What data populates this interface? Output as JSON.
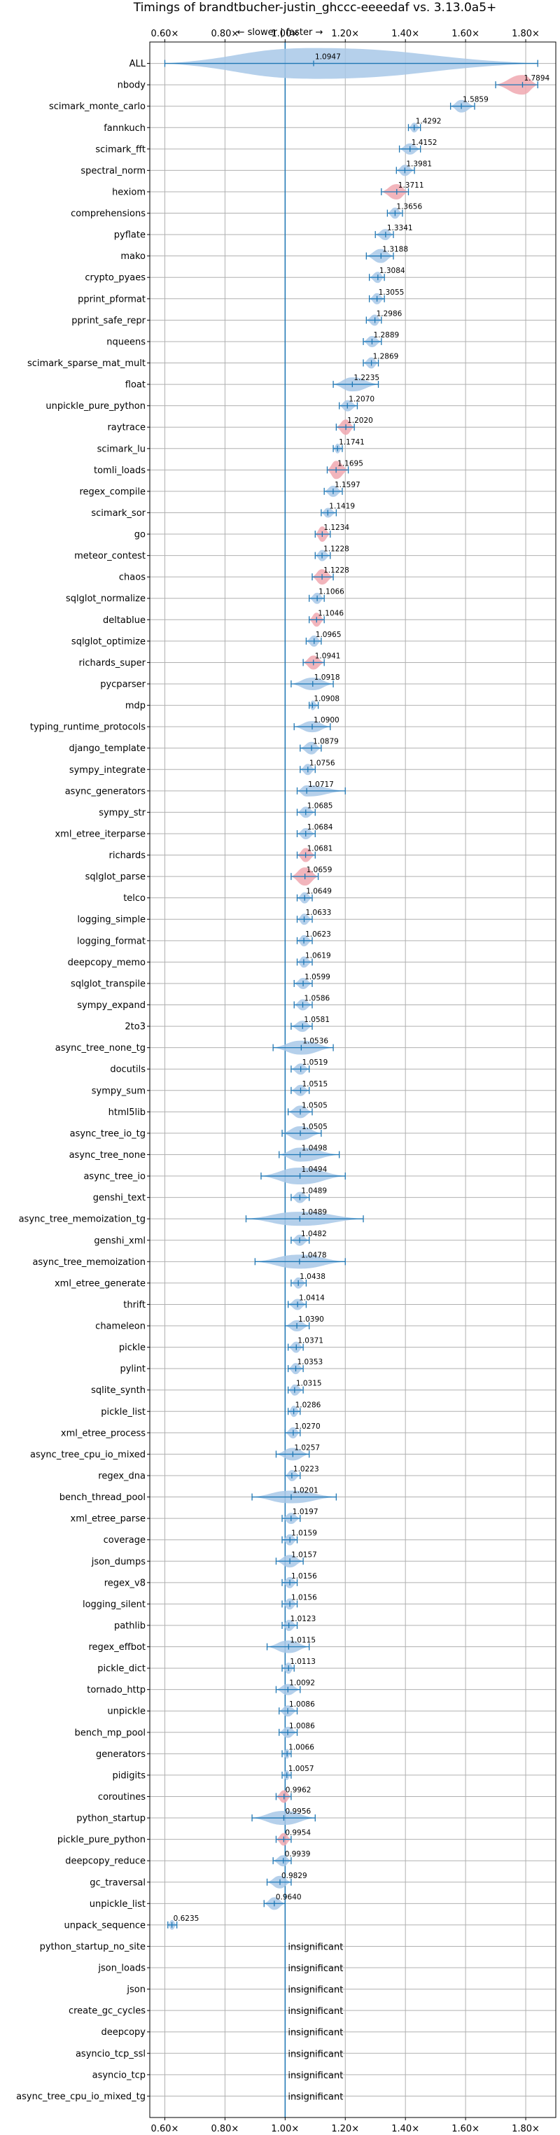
{
  "chart_data": {
    "type": "violin",
    "title": "Timings of brandtbucher-justin_ghccc-eeeedaf vs. 3.13.0a5+",
    "direction_label": "← slower | faster →",
    "x_ticks": [
      "0.60×",
      "0.80×",
      "1.00×",
      "1.20×",
      "1.40×",
      "1.60×",
      "1.80×"
    ],
    "x_tick_values": [
      0.6,
      0.8,
      1.0,
      1.2,
      1.4,
      1.6,
      1.8
    ],
    "xlim": [
      0.55,
      1.9
    ],
    "reference_line": 1.0,
    "grid": true,
    "colors": {
      "default": "#a8c8e8",
      "highlight": "#f0a8b0",
      "line": "#1f77b4"
    },
    "insignificant_label": "insignificant",
    "benchmarks": [
      {
        "name": "ALL",
        "value": 1.0947,
        "label": "1.0947",
        "lo": 0.6,
        "hi": 1.84,
        "w": 22,
        "hl": false
      },
      {
        "name": "nbody",
        "value": 1.7894,
        "label": "1.7894",
        "lo": 1.7,
        "hi": 1.84,
        "w": 14,
        "hl": true
      },
      {
        "name": "scimark_monte_carlo",
        "value": 1.5859,
        "label": "1.5859",
        "lo": 1.55,
        "hi": 1.63,
        "w": 9,
        "hl": false
      },
      {
        "name": "fannkuch",
        "value": 1.4292,
        "label": "1.4292",
        "lo": 1.41,
        "hi": 1.45,
        "w": 7,
        "hl": false
      },
      {
        "name": "scimark_fft",
        "value": 1.4152,
        "label": "1.4152",
        "lo": 1.38,
        "hi": 1.45,
        "w": 8,
        "hl": false
      },
      {
        "name": "spectral_norm",
        "value": 1.3981,
        "label": "1.3981",
        "lo": 1.37,
        "hi": 1.43,
        "w": 8,
        "hl": false
      },
      {
        "name": "hexiom",
        "value": 1.3711,
        "label": "1.3711",
        "lo": 1.32,
        "hi": 1.41,
        "w": 11,
        "hl": true
      },
      {
        "name": "comprehensions",
        "value": 1.3656,
        "label": "1.3656",
        "lo": 1.34,
        "hi": 1.39,
        "w": 8,
        "hl": false
      },
      {
        "name": "pyflate",
        "value": 1.3341,
        "label": "1.3341",
        "lo": 1.3,
        "hi": 1.36,
        "w": 8,
        "hl": false
      },
      {
        "name": "mako",
        "value": 1.3188,
        "label": "1.3188",
        "lo": 1.27,
        "hi": 1.36,
        "w": 10,
        "hl": false
      },
      {
        "name": "crypto_pyaes",
        "value": 1.3084,
        "label": "1.3084",
        "lo": 1.28,
        "hi": 1.33,
        "w": 8,
        "hl": false
      },
      {
        "name": "pprint_pformat",
        "value": 1.3055,
        "label": "1.3055",
        "lo": 1.28,
        "hi": 1.33,
        "w": 8,
        "hl": false
      },
      {
        "name": "pprint_safe_repr",
        "value": 1.2986,
        "label": "1.2986",
        "lo": 1.27,
        "hi": 1.32,
        "w": 8,
        "hl": false
      },
      {
        "name": "nqueens",
        "value": 1.2889,
        "label": "1.2889",
        "lo": 1.26,
        "hi": 1.32,
        "w": 8,
        "hl": false
      },
      {
        "name": "scimark_sparse_mat_mult",
        "value": 1.2869,
        "label": "1.2869",
        "lo": 1.26,
        "hi": 1.31,
        "w": 8,
        "hl": false
      },
      {
        "name": "float",
        "value": 1.2235,
        "label": "1.2235",
        "lo": 1.16,
        "hi": 1.31,
        "w": 10,
        "hl": false
      },
      {
        "name": "unpickle_pure_python",
        "value": 1.207,
        "label": "1.2070",
        "lo": 1.18,
        "hi": 1.24,
        "w": 8,
        "hl": false
      },
      {
        "name": "raytrace",
        "value": 1.202,
        "label": "1.2020",
        "lo": 1.17,
        "hi": 1.23,
        "w": 11,
        "hl": true
      },
      {
        "name": "scimark_lu",
        "value": 1.1741,
        "label": "1.1741",
        "lo": 1.16,
        "hi": 1.19,
        "w": 7,
        "hl": false
      },
      {
        "name": "tomli_loads",
        "value": 1.1695,
        "label": "1.1695",
        "lo": 1.14,
        "hi": 1.21,
        "w": 13,
        "hl": true
      },
      {
        "name": "regex_compile",
        "value": 1.1597,
        "label": "1.1597",
        "lo": 1.13,
        "hi": 1.19,
        "w": 8,
        "hl": false
      },
      {
        "name": "scimark_sor",
        "value": 1.1419,
        "label": "1.1419",
        "lo": 1.12,
        "hi": 1.17,
        "w": 7,
        "hl": false
      },
      {
        "name": "go",
        "value": 1.1234,
        "label": "1.1234",
        "lo": 1.1,
        "hi": 1.15,
        "w": 11,
        "hl": true
      },
      {
        "name": "meteor_contest",
        "value": 1.1228,
        "label": "1.1228",
        "lo": 1.1,
        "hi": 1.15,
        "w": 8,
        "hl": false
      },
      {
        "name": "chaos",
        "value": 1.1228,
        "label": "1.1228",
        "lo": 1.09,
        "hi": 1.16,
        "w": 11,
        "hl": true
      },
      {
        "name": "sqlglot_normalize",
        "value": 1.1066,
        "label": "1.1066",
        "lo": 1.08,
        "hi": 1.13,
        "w": 8,
        "hl": false
      },
      {
        "name": "deltablue",
        "value": 1.1046,
        "label": "1.1046",
        "lo": 1.08,
        "hi": 1.13,
        "w": 10,
        "hl": true
      },
      {
        "name": "sqlglot_optimize",
        "value": 1.0965,
        "label": "1.0965",
        "lo": 1.07,
        "hi": 1.12,
        "w": 8,
        "hl": false
      },
      {
        "name": "richards_super",
        "value": 1.0941,
        "label": "1.0941",
        "lo": 1.06,
        "hi": 1.13,
        "w": 10,
        "hl": true
      },
      {
        "name": "pycparser",
        "value": 1.0918,
        "label": "1.0918",
        "lo": 1.02,
        "hi": 1.16,
        "w": 9,
        "hl": false
      },
      {
        "name": "mdp",
        "value": 1.0908,
        "label": "1.0908",
        "lo": 1.08,
        "hi": 1.11,
        "w": 7,
        "hl": false
      },
      {
        "name": "typing_runtime_protocols",
        "value": 1.09,
        "label": "1.0900",
        "lo": 1.03,
        "hi": 1.15,
        "w": 8,
        "hl": false
      },
      {
        "name": "django_template",
        "value": 1.0879,
        "label": "1.0879",
        "lo": 1.05,
        "hi": 1.12,
        "w": 9,
        "hl": false
      },
      {
        "name": "sympy_integrate",
        "value": 1.0756,
        "label": "1.0756",
        "lo": 1.05,
        "hi": 1.1,
        "w": 8,
        "hl": false
      },
      {
        "name": "async_generators",
        "value": 1.0717,
        "label": "1.0717",
        "lo": 1.04,
        "hi": 1.2,
        "w": 8,
        "hl": false
      },
      {
        "name": "sympy_str",
        "value": 1.0685,
        "label": "1.0685",
        "lo": 1.04,
        "hi": 1.1,
        "w": 8,
        "hl": false
      },
      {
        "name": "xml_etree_iterparse",
        "value": 1.0684,
        "label": "1.0684",
        "lo": 1.04,
        "hi": 1.1,
        "w": 8,
        "hl": false
      },
      {
        "name": "richards",
        "value": 1.0681,
        "label": "1.0681",
        "lo": 1.04,
        "hi": 1.1,
        "w": 10,
        "hl": true
      },
      {
        "name": "sqlglot_parse",
        "value": 1.0659,
        "label": "1.0659",
        "lo": 1.02,
        "hi": 1.11,
        "w": 13,
        "hl": true
      },
      {
        "name": "telco",
        "value": 1.0649,
        "label": "1.0649",
        "lo": 1.04,
        "hi": 1.09,
        "w": 8,
        "hl": false
      },
      {
        "name": "logging_simple",
        "value": 1.0633,
        "label": "1.0633",
        "lo": 1.04,
        "hi": 1.09,
        "w": 8,
        "hl": false
      },
      {
        "name": "logging_format",
        "value": 1.0623,
        "label": "1.0623",
        "lo": 1.04,
        "hi": 1.09,
        "w": 8,
        "hl": false
      },
      {
        "name": "deepcopy_memo",
        "value": 1.0619,
        "label": "1.0619",
        "lo": 1.04,
        "hi": 1.09,
        "w": 8,
        "hl": false
      },
      {
        "name": "sqlglot_transpile",
        "value": 1.0599,
        "label": "1.0599",
        "lo": 1.03,
        "hi": 1.09,
        "w": 8,
        "hl": false
      },
      {
        "name": "sympy_expand",
        "value": 1.0586,
        "label": "1.0586",
        "lo": 1.03,
        "hi": 1.09,
        "w": 8,
        "hl": false
      },
      {
        "name": "2to3",
        "value": 1.0581,
        "label": "1.0581",
        "lo": 1.02,
        "hi": 1.09,
        "w": 8,
        "hl": false
      },
      {
        "name": "async_tree_none_tg",
        "value": 1.0536,
        "label": "1.0536",
        "lo": 0.96,
        "hi": 1.16,
        "w": 10,
        "hl": false
      },
      {
        "name": "docutils",
        "value": 1.0519,
        "label": "1.0519",
        "lo": 1.02,
        "hi": 1.08,
        "w": 8,
        "hl": false
      },
      {
        "name": "sympy_sum",
        "value": 1.0515,
        "label": "1.0515",
        "lo": 1.02,
        "hi": 1.08,
        "w": 8,
        "hl": false
      },
      {
        "name": "html5lib",
        "value": 1.0505,
        "label": "1.0505",
        "lo": 1.01,
        "hi": 1.09,
        "w": 9,
        "hl": false
      },
      {
        "name": "async_tree_io_tg",
        "value": 1.0505,
        "label": "1.0505",
        "lo": 0.99,
        "hi": 1.12,
        "w": 10,
        "hl": false
      },
      {
        "name": "async_tree_none",
        "value": 1.0498,
        "label": "1.0498",
        "lo": 0.98,
        "hi": 1.18,
        "w": 10,
        "hl": false
      },
      {
        "name": "async_tree_io",
        "value": 1.0494,
        "label": "1.0494",
        "lo": 0.92,
        "hi": 1.2,
        "w": 12,
        "hl": false
      },
      {
        "name": "genshi_text",
        "value": 1.0489,
        "label": "1.0489",
        "lo": 1.02,
        "hi": 1.08,
        "w": 8,
        "hl": false
      },
      {
        "name": "async_tree_memoization_tg",
        "value": 1.0489,
        "label": "1.0489",
        "lo": 0.87,
        "hi": 1.26,
        "w": 10,
        "hl": false
      },
      {
        "name": "genshi_xml",
        "value": 1.0482,
        "label": "1.0482",
        "lo": 1.02,
        "hi": 1.08,
        "w": 8,
        "hl": false
      },
      {
        "name": "async_tree_memoization",
        "value": 1.0478,
        "label": "1.0478",
        "lo": 0.9,
        "hi": 1.2,
        "w": 10,
        "hl": false
      },
      {
        "name": "xml_etree_generate",
        "value": 1.0438,
        "label": "1.0438",
        "lo": 1.02,
        "hi": 1.07,
        "w": 8,
        "hl": false
      },
      {
        "name": "thrift",
        "value": 1.0414,
        "label": "1.0414",
        "lo": 1.01,
        "hi": 1.07,
        "w": 8,
        "hl": false
      },
      {
        "name": "chameleon",
        "value": 1.039,
        "label": "1.0390",
        "lo": 1.0,
        "hi": 1.08,
        "w": 8,
        "hl": false
      },
      {
        "name": "pickle",
        "value": 1.0371,
        "label": "1.0371",
        "lo": 1.01,
        "hi": 1.06,
        "w": 8,
        "hl": false
      },
      {
        "name": "pylint",
        "value": 1.0353,
        "label": "1.0353",
        "lo": 1.01,
        "hi": 1.06,
        "w": 8,
        "hl": false
      },
      {
        "name": "sqlite_synth",
        "value": 1.0315,
        "label": "1.0315",
        "lo": 1.01,
        "hi": 1.06,
        "w": 8,
        "hl": false
      },
      {
        "name": "pickle_list",
        "value": 1.0286,
        "label": "1.0286",
        "lo": 1.01,
        "hi": 1.05,
        "w": 8,
        "hl": false
      },
      {
        "name": "xml_etree_process",
        "value": 1.027,
        "label": "1.0270",
        "lo": 1.0,
        "hi": 1.05,
        "w": 8,
        "hl": false
      },
      {
        "name": "async_tree_cpu_io_mixed",
        "value": 1.0257,
        "label": "1.0257",
        "lo": 0.97,
        "hi": 1.08,
        "w": 9,
        "hl": false
      },
      {
        "name": "regex_dna",
        "value": 1.0223,
        "label": "1.0223",
        "lo": 1.0,
        "hi": 1.05,
        "w": 8,
        "hl": false
      },
      {
        "name": "bench_thread_pool",
        "value": 1.0201,
        "label": "1.0201",
        "lo": 0.89,
        "hi": 1.17,
        "w": 9,
        "hl": false
      },
      {
        "name": "xml_etree_parse",
        "value": 1.0197,
        "label": "1.0197",
        "lo": 0.99,
        "hi": 1.05,
        "w": 8,
        "hl": false
      },
      {
        "name": "coverage",
        "value": 1.0159,
        "label": "1.0159",
        "lo": 0.99,
        "hi": 1.04,
        "w": 8,
        "hl": false
      },
      {
        "name": "json_dumps",
        "value": 1.0157,
        "label": "1.0157",
        "lo": 0.97,
        "hi": 1.06,
        "w": 9,
        "hl": false
      },
      {
        "name": "regex_v8",
        "value": 1.0156,
        "label": "1.0156",
        "lo": 0.99,
        "hi": 1.04,
        "w": 8,
        "hl": false
      },
      {
        "name": "logging_silent",
        "value": 1.0156,
        "label": "1.0156",
        "lo": 0.99,
        "hi": 1.04,
        "w": 8,
        "hl": false
      },
      {
        "name": "pathlib",
        "value": 1.0123,
        "label": "1.0123",
        "lo": 0.99,
        "hi": 1.04,
        "w": 8,
        "hl": false
      },
      {
        "name": "regex_effbot",
        "value": 1.0115,
        "label": "1.0115",
        "lo": 0.94,
        "hi": 1.08,
        "w": 9,
        "hl": false
      },
      {
        "name": "pickle_dict",
        "value": 1.0113,
        "label": "1.0113",
        "lo": 0.99,
        "hi": 1.03,
        "w": 8,
        "hl": false
      },
      {
        "name": "tornado_http",
        "value": 1.0092,
        "label": "1.0092",
        "lo": 0.97,
        "hi": 1.05,
        "w": 8,
        "hl": false
      },
      {
        "name": "unpickle",
        "value": 1.0086,
        "label": "1.0086",
        "lo": 0.98,
        "hi": 1.04,
        "w": 8,
        "hl": false
      },
      {
        "name": "bench_mp_pool",
        "value": 1.0086,
        "label": "1.0086",
        "lo": 0.98,
        "hi": 1.04,
        "w": 8,
        "hl": false
      },
      {
        "name": "generators",
        "value": 1.0066,
        "label": "1.0066",
        "lo": 0.99,
        "hi": 1.02,
        "w": 7,
        "hl": false
      },
      {
        "name": "pidigits",
        "value": 1.0057,
        "label": "1.0057",
        "lo": 0.99,
        "hi": 1.02,
        "w": 7,
        "hl": false
      },
      {
        "name": "coroutines",
        "value": 0.9962,
        "label": "0.9962",
        "lo": 0.97,
        "hi": 1.02,
        "w": 9,
        "hl": true
      },
      {
        "name": "python_startup",
        "value": 0.9956,
        "label": "0.9956",
        "lo": 0.89,
        "hi": 1.1,
        "w": 10,
        "hl": false
      },
      {
        "name": "pickle_pure_python",
        "value": 0.9954,
        "label": "0.9954",
        "lo": 0.97,
        "hi": 1.02,
        "w": 9,
        "hl": true
      },
      {
        "name": "deepcopy_reduce",
        "value": 0.9939,
        "label": "0.9939",
        "lo": 0.96,
        "hi": 1.02,
        "w": 8,
        "hl": false
      },
      {
        "name": "gc_traversal",
        "value": 0.9829,
        "label": "0.9829",
        "lo": 0.94,
        "hi": 1.02,
        "w": 9,
        "hl": false
      },
      {
        "name": "unpickle_list",
        "value": 0.964,
        "label": "0.9640",
        "lo": 0.93,
        "hi": 1.0,
        "w": 9,
        "hl": false
      },
      {
        "name": "unpack_sequence",
        "value": 0.6235,
        "label": "0.6235",
        "lo": 0.61,
        "hi": 0.64,
        "w": 7,
        "hl": false
      },
      {
        "name": "python_startup_no_site",
        "value": null,
        "label": "",
        "lo": null,
        "hi": null,
        "w": 0,
        "hl": false
      },
      {
        "name": "json_loads",
        "value": null,
        "label": "",
        "lo": null,
        "hi": null,
        "w": 0,
        "hl": false
      },
      {
        "name": "json",
        "value": null,
        "label": "",
        "lo": null,
        "hi": null,
        "w": 0,
        "hl": false
      },
      {
        "name": "create_gc_cycles",
        "value": null,
        "label": "",
        "lo": null,
        "hi": null,
        "w": 0,
        "hl": false
      },
      {
        "name": "deepcopy",
        "value": null,
        "label": "",
        "lo": null,
        "hi": null,
        "w": 0,
        "hl": false
      },
      {
        "name": "asyncio_tcp_ssl",
        "value": null,
        "label": "",
        "lo": null,
        "hi": null,
        "w": 0,
        "hl": false
      },
      {
        "name": "asyncio_tcp",
        "value": null,
        "label": "",
        "lo": null,
        "hi": null,
        "w": 0,
        "hl": false
      },
      {
        "name": "async_tree_cpu_io_mixed_tg",
        "value": null,
        "label": "",
        "lo": null,
        "hi": null,
        "w": 0,
        "hl": false
      }
    ]
  }
}
